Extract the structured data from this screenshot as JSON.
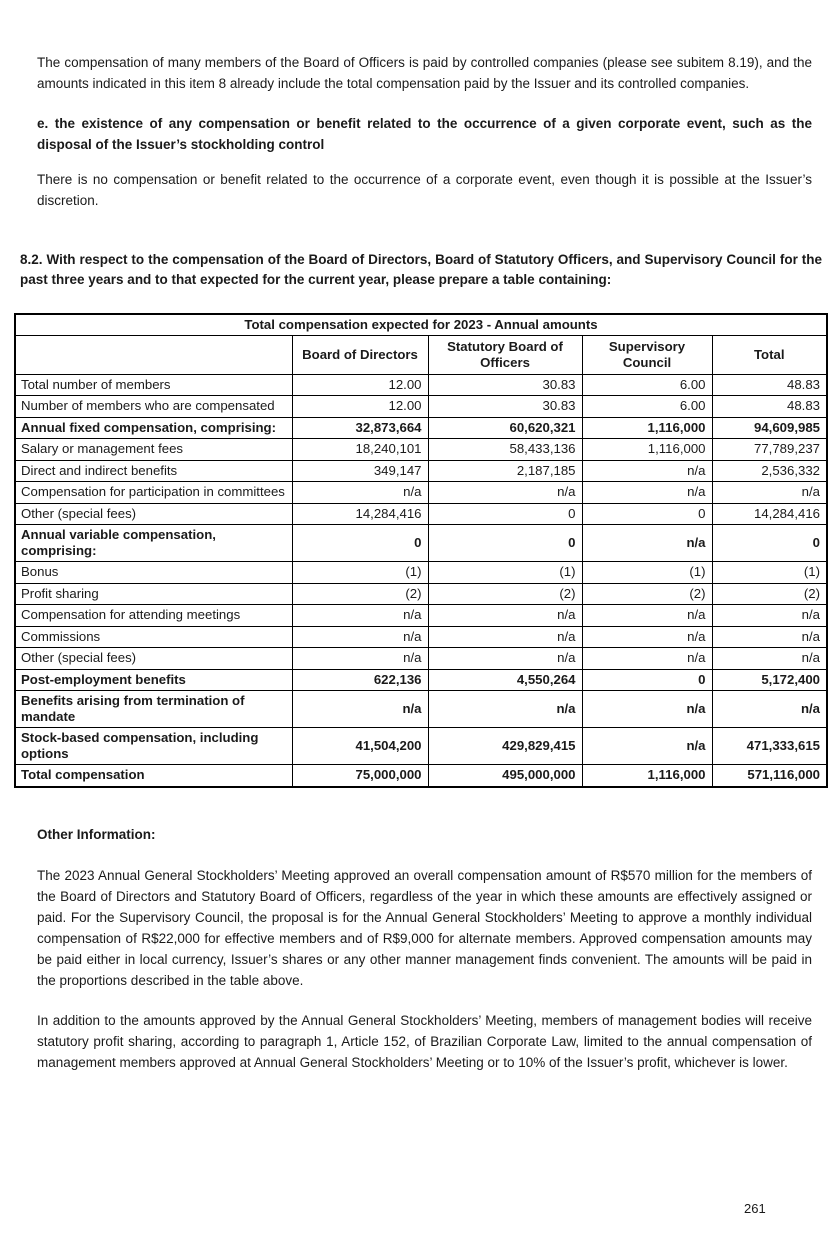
{
  "page": {
    "number": "261"
  },
  "intro": {
    "paragraph1": "The compensation of many members of the Board of Officers is paid by controlled companies (please see subitem 8.19), and the amounts indicated in this item 8 already include the total compensation paid by the Issuer and its controlled companies.",
    "heading_e": "e. the existence of any compensation or benefit related to the occurrence of a given corporate event, such as the disposal of the Issuer’s stockholding control",
    "paragraph2": "There is no compensation or benefit related to the occurrence of a corporate event, even though it is possible at the Issuer’s discretion.",
    "heading_82": "8.2. With respect to the compensation of the Board of Directors, Board of Statutory Officers, and Supervisory Council for the past three years and to that expected for the current year, please prepare a table containing:"
  },
  "table": {
    "title": "Total compensation expected for 2023 - Annual amounts",
    "columns": [
      "",
      "Board of Directors",
      "Statutory Board of Officers",
      "Supervisory Council",
      "Total"
    ],
    "rows": [
      {
        "label": "Total number of members",
        "values": [
          "12.00",
          "30.83",
          "6.00",
          "48.83"
        ],
        "bold": false
      },
      {
        "label": "Number of members who are compensated",
        "values": [
          "12.00",
          "30.83",
          "6.00",
          "48.83"
        ],
        "bold": false
      },
      {
        "label": "Annual fixed compensation, comprising:",
        "values": [
          "32,873,664",
          "60,620,321",
          "1,116,000",
          "94,609,985"
        ],
        "bold": true
      },
      {
        "label": "Salary or management fees",
        "values": [
          "18,240,101",
          "58,433,136",
          "1,116,000",
          "77,789,237"
        ],
        "bold": false
      },
      {
        "label": "Direct and indirect benefits",
        "values": [
          "349,147",
          "2,187,185",
          "n/a",
          "2,536,332"
        ],
        "bold": false
      },
      {
        "label": "Compensation for participation in committees",
        "values": [
          "n/a",
          "n/a",
          "n/a",
          "n/a"
        ],
        "bold": false
      },
      {
        "label": "Other (special fees)",
        "values": [
          "14,284,416",
          "0",
          "0",
          "14,284,416"
        ],
        "bold": false
      },
      {
        "label": "Annual variable compensation, comprising:",
        "values": [
          "0",
          "0",
          "n/a",
          "0"
        ],
        "bold": true
      },
      {
        "label": "Bonus",
        "values": [
          "(1)",
          "(1)",
          "(1)",
          "(1)"
        ],
        "bold": false
      },
      {
        "label": "Profit sharing",
        "values": [
          "(2)",
          "(2)",
          "(2)",
          "(2)"
        ],
        "bold": false
      },
      {
        "label": "Compensation for attending meetings",
        "values": [
          "n/a",
          "n/a",
          "n/a",
          "n/a"
        ],
        "bold": false
      },
      {
        "label": "Commissions",
        "values": [
          "n/a",
          "n/a",
          "n/a",
          "n/a"
        ],
        "bold": false
      },
      {
        "label": "Other (special fees)",
        "values": [
          "n/a",
          "n/a",
          "n/a",
          "n/a"
        ],
        "bold": false
      },
      {
        "label": "Post-employment benefits",
        "values": [
          "622,136",
          "4,550,264",
          "0",
          "5,172,400"
        ],
        "bold": true
      },
      {
        "label": "Benefits arising from termination of mandate",
        "values": [
          "n/a",
          "n/a",
          "n/a",
          "n/a"
        ],
        "bold": true
      },
      {
        "label": "Stock-based compensation, including options",
        "values": [
          "41,504,200",
          "429,829,415",
          "n/a",
          "471,333,615"
        ],
        "bold": true
      },
      {
        "label": "Total compensation",
        "values": [
          "75,000,000",
          "495,000,000",
          "1,116,000",
          "571,116,000"
        ],
        "bold": true
      }
    ]
  },
  "other_information": {
    "heading": "Other Information:",
    "paragraph1": "The 2023 Annual General Stockholders’ Meeting approved an overall compensation amount of R$570 million for the members of the Board of Directors and Statutory Board of Officers, regardless of the year in which these amounts are effectively assigned or paid. For the Supervisory Council, the proposal is for the Annual General Stockholders’ Meeting to approve a monthly individual compensation of R$22,000 for effective members and of R$9,000 for alternate members. Approved compensation amounts may be paid either in local currency, Issuer’s shares or any other manner management finds convenient. The amounts will be paid in the proportions described in the table above.",
    "paragraph2": "In addition to the amounts approved by the Annual General Stockholders’ Meeting, members of management bodies will receive statutory profit sharing, according to paragraph 1, Article 152, of Brazilian Corporate Law, limited to the annual compensation of management members approved at Annual General Stockholders’ Meeting or to 10% of the Issuer’s profit, whichever is lower."
  }
}
